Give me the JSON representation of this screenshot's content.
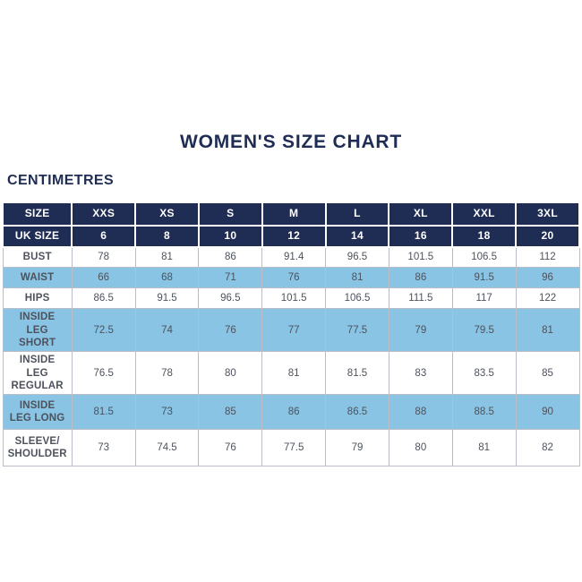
{
  "page": {
    "title": "WOMEN'S SIZE CHART",
    "unit_label": "CENTIMETRES"
  },
  "colors": {
    "navy": "#1f2d54",
    "light_blue": "#89c4e4",
    "border_gray": "#b9bec6",
    "value_text": "#4d525c"
  },
  "chart_data": {
    "type": "table",
    "columns": [
      "SIZE",
      "XXS",
      "XS",
      "S",
      "M",
      "L",
      "XL",
      "XXL",
      "3XL"
    ],
    "uk_size_row": {
      "label": "UK SIZE",
      "values": [
        6,
        8,
        10,
        12,
        14,
        16,
        18,
        20
      ]
    },
    "rows": [
      {
        "label": "BUST",
        "values": [
          78,
          81,
          86,
          91.4,
          96.5,
          101.5,
          106.5,
          112
        ]
      },
      {
        "label": "WAIST",
        "values": [
          66,
          68,
          71,
          76,
          81,
          86,
          91.5,
          96
        ]
      },
      {
        "label": "HIPS",
        "values": [
          86.5,
          91.5,
          96.5,
          101.5,
          106.5,
          111.5,
          117,
          122
        ]
      },
      {
        "label": "INSIDE LEG SHORT",
        "values": [
          72.5,
          74,
          76,
          77,
          77.5,
          79,
          79.5,
          81
        ]
      },
      {
        "label": "INSIDE LEG REGULAR",
        "values": [
          76.5,
          78,
          80,
          81,
          81.5,
          83,
          83.5,
          85
        ]
      },
      {
        "label": "INSIDE LEG LONG",
        "values": [
          81.5,
          73,
          85,
          86,
          86.5,
          88,
          88.5,
          90
        ]
      },
      {
        "label": "SLEEVE/ SHOULDER",
        "values": [
          73,
          74.5,
          76,
          77.5,
          79,
          80,
          81,
          82
        ]
      }
    ]
  }
}
